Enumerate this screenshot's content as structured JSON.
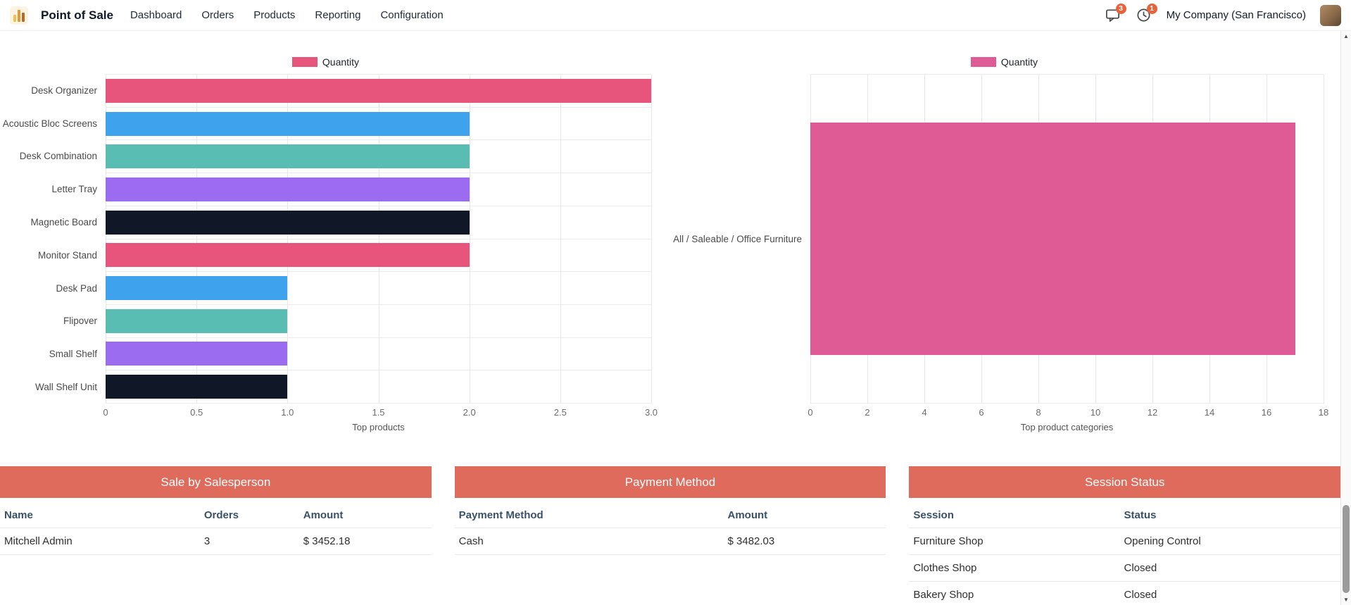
{
  "navbar": {
    "app_name": "Point of Sale",
    "menu": [
      "Dashboard",
      "Orders",
      "Products",
      "Reporting",
      "Configuration"
    ],
    "messages_badge": "3",
    "activities_badge": "1",
    "company": "My Company (San Francisco)"
  },
  "chart_data": [
    {
      "type": "bar",
      "orientation": "horizontal",
      "legend": [
        "Quantity"
      ],
      "legend_color": "#e7547c",
      "categories": [
        "Desk Organizer",
        "Acoustic Bloc Screens",
        "Desk Combination",
        "Letter Tray",
        "Magnetic Board",
        "Monitor Stand",
        "Desk Pad",
        "Flipover",
        "Small Shelf",
        "Wall Shelf Unit"
      ],
      "values": [
        3,
        2,
        2,
        2,
        2,
        2,
        1,
        1,
        1,
        1
      ],
      "bar_colors": [
        "#e7547c",
        "#3ea2ec",
        "#5abdb4",
        "#9b6cf0",
        "#101828",
        "#e7547c",
        "#3ea2ec",
        "#5abdb4",
        "#9b6cf0",
        "#101828"
      ],
      "xlabel": "Top products",
      "xlim": [
        0,
        3
      ],
      "xticks": [
        "0",
        "0.5",
        "1.0",
        "1.5",
        "2.0",
        "2.5",
        "3.0"
      ],
      "grid": true,
      "legend_position": "top"
    },
    {
      "type": "bar",
      "orientation": "horizontal",
      "legend": [
        "Quantity"
      ],
      "legend_color": "#df5b95",
      "categories": [
        "All / Saleable / Office Furniture"
      ],
      "values": [
        17
      ],
      "bar_colors": [
        "#df5b95"
      ],
      "xlabel": "Top product categories",
      "xlim": [
        0,
        18
      ],
      "xticks": [
        "0",
        "2",
        "4",
        "6",
        "8",
        "10",
        "12",
        "14",
        "16",
        "18"
      ],
      "grid": true,
      "legend_position": "top"
    }
  ],
  "tables": [
    {
      "title": "Sale by Salesperson",
      "columns": [
        "Name",
        "Orders",
        "Amount"
      ],
      "rows": [
        [
          "Mitchell Admin",
          "3",
          "$ 3452.18"
        ]
      ]
    },
    {
      "title": "Payment Method",
      "columns": [
        "Payment Method",
        "Amount"
      ],
      "rows": [
        [
          "Cash",
          "$ 3482.03"
        ]
      ]
    },
    {
      "title": "Session Status",
      "columns": [
        "Session",
        "Status"
      ],
      "rows": [
        [
          "Furniture Shop",
          "Opening Control"
        ],
        [
          "Clothes Shop",
          "Closed"
        ],
        [
          "Bakery Shop",
          "Closed"
        ]
      ]
    }
  ],
  "colors": {
    "card_header_bg": "#de6b5b",
    "badge_bg": "#e8633c",
    "table_header_text": "#3b5168"
  },
  "scrollbar": {
    "up_glyph": "▲",
    "down_glyph": "▼"
  }
}
